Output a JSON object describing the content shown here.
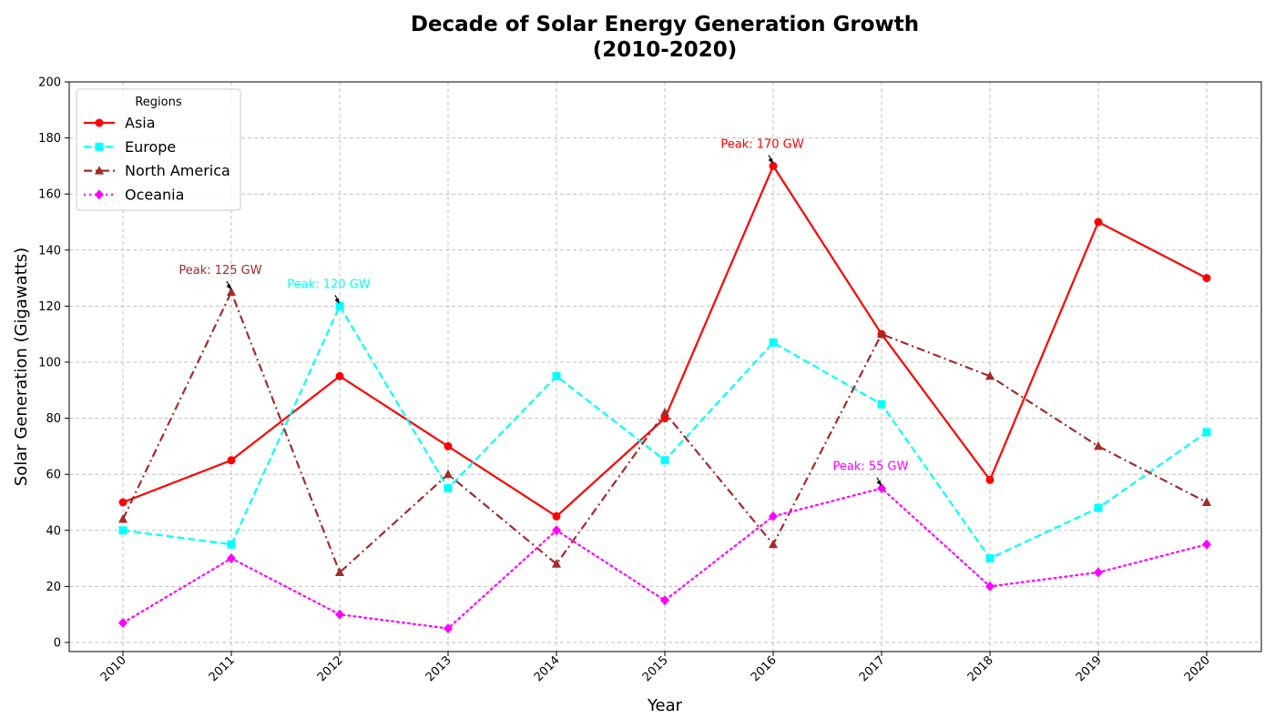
{
  "chart_data": {
    "type": "line",
    "title_line1": "Decade of Solar Energy Generation Growth",
    "title_line2": "(2010-2020)",
    "xlabel": "Year",
    "ylabel": "Solar Generation (Gigawatts)",
    "ylim": [
      0,
      200
    ],
    "yticks": [
      0,
      20,
      40,
      60,
      80,
      100,
      120,
      140,
      160,
      180,
      200
    ],
    "grid": true,
    "legend": {
      "title": "Regions",
      "placement": "top-left"
    },
    "x": [
      "2010",
      "2011",
      "2012",
      "2013",
      "2014",
      "2015",
      "2016",
      "2017",
      "2018",
      "2019",
      "2020"
    ],
    "series": [
      {
        "name": "Asia",
        "color": "#ff0000",
        "marker": "circle",
        "line_style": "solid",
        "values": [
          50,
          65,
          95,
          70,
          45,
          80,
          170,
          110,
          58,
          150,
          130
        ]
      },
      {
        "name": "Europe",
        "color": "#00ffff",
        "marker": "square",
        "line_style": "dashed",
        "values": [
          40,
          35,
          120,
          55,
          95,
          65,
          107,
          85,
          30,
          48,
          75
        ]
      },
      {
        "name": "North America",
        "color": "#a52a2a",
        "marker": "triangle",
        "line_style": "dashdot",
        "values": [
          44,
          125,
          25,
          60,
          28,
          82,
          35,
          110,
          95,
          70,
          50
        ]
      },
      {
        "name": "Oceania",
        "color": "#ff00ff",
        "marker": "diamond",
        "line_style": "dotted",
        "values": [
          7,
          30,
          10,
          5,
          40,
          15,
          45,
          55,
          20,
          25,
          35
        ]
      }
    ],
    "annotations": [
      {
        "text": "Peak: 170 GW",
        "series": "Asia",
        "x": "2016",
        "y": 170
      },
      {
        "text": "Peak: 120 GW",
        "series": "Europe",
        "x": "2012",
        "y": 120
      },
      {
        "text": "Peak: 125 GW",
        "series": "North America",
        "x": "2011",
        "y": 125
      },
      {
        "text": "Peak: 55 GW",
        "series": "Oceania",
        "x": "2017",
        "y": 55
      }
    ]
  }
}
